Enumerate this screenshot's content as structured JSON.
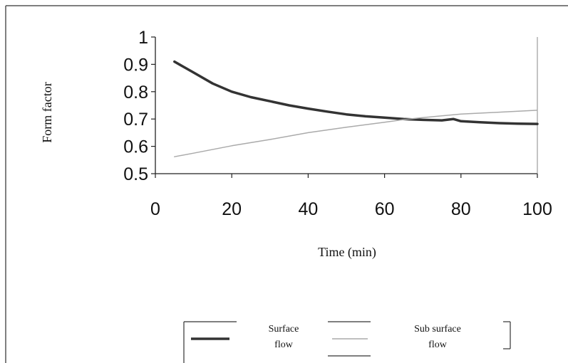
{
  "chart_data": {
    "type": "line",
    "title": "",
    "xlabel": "Time (min)",
    "ylabel": "Form factor",
    "xlim": [
      0,
      100
    ],
    "ylim": [
      0.5,
      1
    ],
    "xticks": [
      0,
      20,
      40,
      60,
      80,
      100
    ],
    "yticks": [
      0.5,
      0.6,
      0.7,
      0.8,
      0.9,
      1
    ],
    "xtick_labels": [
      "0",
      "20",
      "40",
      "60",
      "80",
      "100"
    ],
    "ytick_labels": [
      "0.5",
      "0.6",
      "0.7",
      "0.8",
      "0.9",
      "1"
    ],
    "grid": false,
    "legend_position": "bottom",
    "series": [
      {
        "name": "Surface flow",
        "color": "#333333",
        "x": [
          5,
          10,
          15,
          20,
          25,
          30,
          35,
          40,
          45,
          50,
          55,
          60,
          65,
          70,
          75,
          78,
          80,
          85,
          90,
          95,
          100
        ],
        "y": [
          0.91,
          0.87,
          0.83,
          0.8,
          0.78,
          0.765,
          0.75,
          0.738,
          0.727,
          0.717,
          0.71,
          0.705,
          0.7,
          0.697,
          0.695,
          0.7,
          0.692,
          0.688,
          0.685,
          0.683,
          0.682
        ]
      },
      {
        "name": "Sub surface flow",
        "color": "#aaaaaa",
        "x": [
          5,
          10,
          20,
          30,
          40,
          50,
          60,
          65,
          70,
          80,
          90,
          100
        ],
        "y": [
          0.562,
          0.575,
          0.602,
          0.625,
          0.65,
          0.67,
          0.688,
          0.698,
          0.705,
          0.718,
          0.725,
          0.732
        ]
      }
    ],
    "legend": {
      "surface_line1": "Surface",
      "surface_line2": "flow",
      "sub_line1": "Sub surface",
      "sub_line2": "flow"
    }
  }
}
